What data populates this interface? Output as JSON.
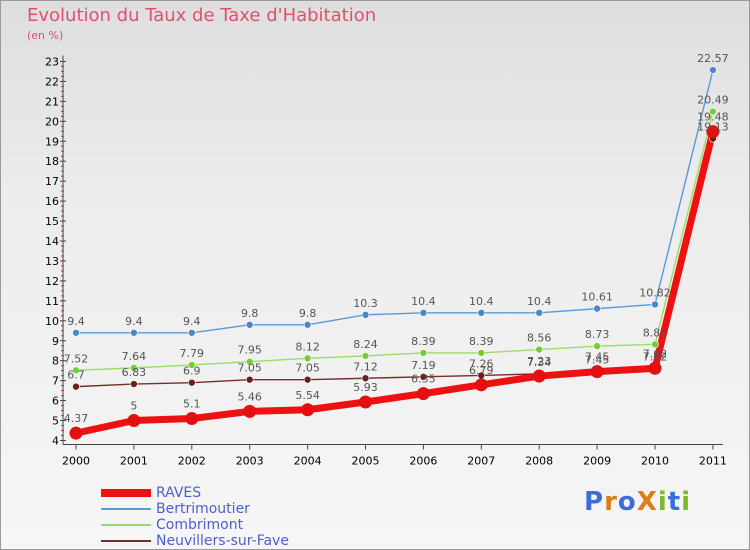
{
  "page": {
    "title": "Evolution du Taux de Taxe d'Habitation",
    "unit_label": "(en %)"
  },
  "colors": {
    "title": "#e0506e",
    "legend_text": "#4a5fd0"
  },
  "logo": {
    "text": "ProXiti",
    "letters": [
      {
        "ch": "P",
        "color": "#3b6fd6"
      },
      {
        "ch": "r",
        "color": "#e07b1a"
      },
      {
        "ch": "o",
        "color": "#3b6fd6"
      },
      {
        "ch": "X",
        "color": "#e07b1a"
      },
      {
        "ch": "i",
        "color": "#7ab82c"
      },
      {
        "ch": "t",
        "color": "#3b6fd6"
      },
      {
        "ch": "i",
        "color": "#7ab82c"
      }
    ]
  },
  "chart_data": {
    "type": "line",
    "x": [
      2000,
      2001,
      2002,
      2003,
      2004,
      2005,
      2006,
      2007,
      2008,
      2009,
      2010,
      2011
    ],
    "ylim": [
      4,
      23
    ],
    "yticks": [
      4,
      5,
      6,
      7,
      8,
      9,
      10,
      11,
      12,
      13,
      14,
      15,
      16,
      17,
      18,
      19,
      20,
      21,
      22,
      23
    ],
    "grid": false,
    "legend_position": "bottom-left",
    "series": [
      {
        "name": "Bertrimoutier",
        "color": "#5b9bd5",
        "marker": "#4a86c8",
        "width": 1.4,
        "radius": 3.5,
        "values": [
          9.4,
          9.4,
          9.4,
          9.8,
          9.8,
          10.3,
          10.4,
          10.4,
          10.4,
          10.61,
          10.82,
          22.57
        ],
        "labels": [
          "9.4",
          "9.4",
          "9.4",
          "9.8",
          "9.8",
          "10.3",
          "10.4",
          "10.4",
          "10.4",
          "10.61",
          "10.82",
          "22.57"
        ]
      },
      {
        "name": "Combrimont",
        "color": "#99dd66",
        "marker": "#77cc33",
        "width": 1.4,
        "radius": 3.5,
        "values": [
          7.52,
          7.64,
          7.79,
          7.95,
          8.12,
          8.24,
          8.39,
          8.39,
          8.56,
          8.73,
          8.82,
          20.49
        ],
        "labels": [
          "7.52",
          "7.64",
          "7.79",
          "7.95",
          "8.12",
          "8.24",
          "8.39",
          "8.39",
          "8.56",
          "8.73",
          "8.82",
          "20.49"
        ]
      },
      {
        "name": "Neuvillers-sur-Fave",
        "color": "#7a2b2b",
        "marker": "#661f1f",
        "width": 1.4,
        "radius": 3.5,
        "values": [
          6.7,
          6.83,
          6.9,
          7.05,
          7.05,
          7.12,
          7.19,
          7.26,
          7.34,
          7.45,
          7.62,
          19.13
        ],
        "labels": [
          "6.7",
          "6.83",
          "6.9",
          "7.05",
          "7.05",
          "7.12",
          "7.19",
          "7.26",
          "7.34",
          "7.45",
          "7.62",
          "19.13"
        ]
      },
      {
        "name": "RAVES",
        "color": "#ee1111",
        "marker": "#e31010",
        "width": 7,
        "radius": 6.5,
        "values": [
          4.37,
          5,
          5.1,
          5.46,
          5.54,
          5.93,
          6.35,
          6.79,
          7.23,
          7.45,
          7.62,
          19.48
        ],
        "labels": [
          "4.37",
          "5",
          "5.1",
          "5.46",
          "5.54",
          "5.93",
          "6.35",
          "6.79",
          "7.23",
          "7.45",
          "7.62",
          "19.48"
        ]
      }
    ]
  }
}
